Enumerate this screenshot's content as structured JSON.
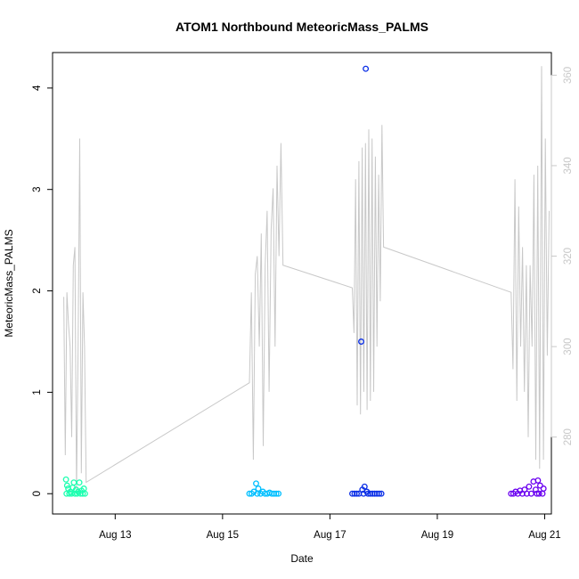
{
  "chart_data": {
    "type": "scatter",
    "title": "ATOM1 Northbound MeteoricMass_PALMS",
    "xlabel": "Date",
    "ylabel": "MeteoricMass_PALMS",
    "xlim": [
      "2016-08-11T20:00",
      "2016-08-21T03:00"
    ],
    "ylim": [
      -0.2,
      4.35
    ],
    "y2lim": [
      263,
      365
    ],
    "x_ticks": [
      {
        "value": "2016-08-13",
        "label": "Aug 13"
      },
      {
        "value": "2016-08-15",
        "label": "Aug 15"
      },
      {
        "value": "2016-08-17",
        "label": "Aug 17"
      },
      {
        "value": "2016-08-19",
        "label": "Aug 19"
      },
      {
        "value": "2016-08-21",
        "label": "Aug 21"
      }
    ],
    "y_ticks": [
      0,
      1,
      2,
      3,
      4
    ],
    "y2_ticks": [
      280,
      300,
      320,
      340,
      360
    ],
    "grid": false,
    "colors": {
      "flight1": "#1effb0",
      "flight2": "#00bfff",
      "flight3": "#0a2ee6",
      "flight4": "#6a00f0",
      "secondary_line": "#c8c8c8",
      "secondary_axis": "#c8c8c8"
    },
    "series": [
      {
        "color": "#1effb0",
        "marker": "open-circle",
        "points": [
          [
            "2016-08-12T02:00",
            0.14
          ],
          [
            "2016-08-12T02:30",
            0.08
          ],
          [
            "2016-08-12T03:00",
            0.05
          ],
          [
            "2016-08-12T02:15",
            0.0
          ],
          [
            "2016-08-12T03:30",
            0.0
          ],
          [
            "2016-08-12T04:00",
            0.02
          ],
          [
            "2016-08-12T04:30",
            0.0
          ],
          [
            "2016-08-12T05:00",
            0.06
          ],
          [
            "2016-08-12T05:30",
            0.11
          ],
          [
            "2016-08-12T06:00",
            0.0
          ],
          [
            "2016-08-12T06:30",
            0.04
          ],
          [
            "2016-08-12T07:00",
            0.0
          ],
          [
            "2016-08-12T07:30",
            0.02
          ],
          [
            "2016-08-12T08:00",
            0.11
          ],
          [
            "2016-08-12T08:30",
            0.0
          ],
          [
            "2016-08-12T09:00",
            0.03
          ],
          [
            "2016-08-12T09:30",
            0.0
          ],
          [
            "2016-08-12T10:00",
            0.05
          ],
          [
            "2016-08-12T10:30",
            0.0
          ]
        ]
      },
      {
        "color": "#00bfff",
        "marker": "open-circle",
        "points": [
          [
            "2016-08-15T12:00",
            0.0
          ],
          [
            "2016-08-15T13:00",
            0.0
          ],
          [
            "2016-08-15T14:00",
            0.02
          ],
          [
            "2016-08-15T15:00",
            0.1
          ],
          [
            "2016-08-15T15:30",
            0.0
          ],
          [
            "2016-08-15T16:00",
            0.05
          ],
          [
            "2016-08-15T17:00",
            0.0
          ],
          [
            "2016-08-15T18:00",
            0.02
          ],
          [
            "2016-08-15T19:00",
            0.0
          ],
          [
            "2016-08-15T20:00",
            0.0
          ],
          [
            "2016-08-15T21:00",
            0.01
          ],
          [
            "2016-08-15T22:00",
            0.0
          ],
          [
            "2016-08-15T23:00",
            0.0
          ],
          [
            "2016-08-16T00:00",
            0.0
          ],
          [
            "2016-08-16T01:00",
            0.0
          ]
        ]
      },
      {
        "color": "#0a2ee6",
        "marker": "open-circle",
        "points": [
          [
            "2016-08-17T10:00",
            0.0
          ],
          [
            "2016-08-17T11:00",
            0.0
          ],
          [
            "2016-08-17T12:00",
            0.0
          ],
          [
            "2016-08-17T13:00",
            0.0
          ],
          [
            "2016-08-17T14:00",
            1.5
          ],
          [
            "2016-08-17T14:30",
            0.04
          ],
          [
            "2016-08-17T15:00",
            0.0
          ],
          [
            "2016-08-17T15:30",
            0.07
          ],
          [
            "2016-08-17T16:00",
            4.19
          ],
          [
            "2016-08-17T16:30",
            0.02
          ],
          [
            "2016-08-17T17:00",
            0.0
          ],
          [
            "2016-08-17T18:00",
            0.0
          ],
          [
            "2016-08-17T19:00",
            0.0
          ],
          [
            "2016-08-17T20:00",
            0.0
          ],
          [
            "2016-08-17T21:00",
            0.0
          ],
          [
            "2016-08-17T22:00",
            0.0
          ],
          [
            "2016-08-17T23:00",
            0.0
          ]
        ]
      },
      {
        "color": "#6a00f0",
        "marker": "open-circle",
        "points": [
          [
            "2016-08-20T09:00",
            0.0
          ],
          [
            "2016-08-20T10:00",
            0.0
          ],
          [
            "2016-08-20T11:00",
            0.02
          ],
          [
            "2016-08-20T12:00",
            0.0
          ],
          [
            "2016-08-20T13:00",
            0.03
          ],
          [
            "2016-08-20T14:00",
            0.0
          ],
          [
            "2016-08-20T15:00",
            0.04
          ],
          [
            "2016-08-20T16:00",
            0.0
          ],
          [
            "2016-08-20T17:00",
            0.07
          ],
          [
            "2016-08-20T18:00",
            0.0
          ],
          [
            "2016-08-20T19:00",
            0.12
          ],
          [
            "2016-08-20T20:00",
            0.04
          ],
          [
            "2016-08-20T20:30",
            0.0
          ],
          [
            "2016-08-20T21:00",
            0.13
          ],
          [
            "2016-08-20T21:30",
            0.0
          ],
          [
            "2016-08-20T22:00",
            0.08
          ],
          [
            "2016-08-20T23:00",
            0.0
          ],
          [
            "2016-08-20T23:30",
            0.05
          ]
        ]
      }
    ],
    "secondary_series": {
      "axis": "right",
      "color": "#c8c8c8",
      "type": "line",
      "segments": [
        {
          "t_start": "2016-08-12T01:00",
          "t_end": "2016-08-12T11:00",
          "values": [
            311,
            276,
            312,
            305,
            300,
            280,
            318,
            322,
            268,
            300,
            346,
            272,
            312,
            300,
            270
          ]
        },
        {
          "t_start": "2016-08-15T12:00",
          "t_end": "2016-08-16T03:00",
          "values": [
            292,
            312,
            275,
            316,
            320,
            300,
            325,
            278,
            318,
            330,
            290,
            326,
            335,
            300,
            340,
            320,
            345,
            318
          ]
        },
        {
          "t_start": "2016-08-17T10:00",
          "t_end": "2016-08-17T23:59",
          "values": [
            313,
            303,
            337,
            287,
            341,
            285,
            344,
            290,
            345,
            286,
            348,
            288,
            346,
            290,
            342,
            300,
            338,
            310,
            349,
            322
          ]
        },
        {
          "t_start": "2016-08-20T09:00",
          "t_end": "2016-08-21T02:00",
          "values": [
            312,
            295,
            337,
            288,
            331,
            300,
            322,
            290,
            318,
            280,
            318,
            300,
            338,
            275,
            340,
            273,
            362,
            275,
            346,
            298,
            330
          ]
        }
      ]
    }
  }
}
